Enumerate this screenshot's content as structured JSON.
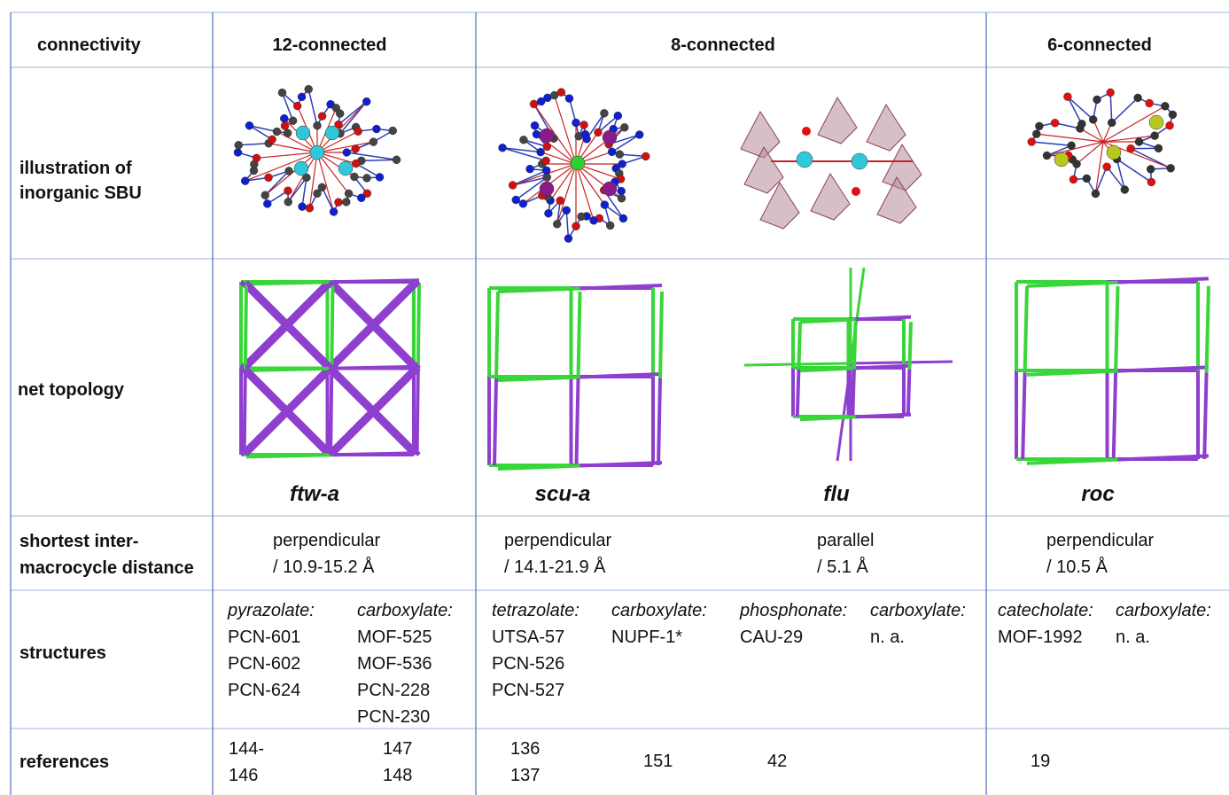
{
  "table": {
    "header": [
      "connectivity",
      "12-connected",
      "8-connected",
      "6-connected"
    ],
    "illustration_label": [
      "illustration of",
      "inorganic SBU"
    ],
    "topology_label": "net topology",
    "topologies": [
      "ftw-a",
      "scu-a",
      "flu",
      "roc"
    ],
    "distance_label": [
      "shortest inter-",
      "macrocycle distance"
    ],
    "distances": [
      {
        "orientation": "perpendicular",
        "distance": "/ 10.9-15.2 Å"
      },
      {
        "orientation": "perpendicular",
        "distance": "/ 14.1-21.9 Å"
      },
      {
        "orientation": "parallel",
        "distance": "/ 5.1 Å"
      },
      {
        "orientation": "perpendicular",
        "distance": "/ 10.5 Å"
      }
    ],
    "structures_label": "structures",
    "structures": [
      {
        "linker": "pyrazolate:",
        "items": [
          "PCN-601",
          "PCN-602",
          "PCN-624"
        ]
      },
      {
        "linker": "carboxylate:",
        "items": [
          "MOF-525",
          "MOF-536",
          "PCN-228",
          "PCN-230"
        ]
      },
      {
        "linker": "tetrazolate:",
        "items": [
          "UTSA-57",
          "PCN-526",
          "PCN-527"
        ]
      },
      {
        "linker": "carboxylate:",
        "items": [
          "NUPF-1*"
        ]
      },
      {
        "linker": "phosphonate:",
        "items": [
          "CAU-29"
        ]
      },
      {
        "linker": "carboxylate:",
        "items": [
          "n. a."
        ]
      },
      {
        "linker": "catecholate:",
        "items": [
          "MOF-1992"
        ]
      },
      {
        "linker": "carboxylate:",
        "items": [
          "n. a."
        ]
      }
    ],
    "references_label": "references",
    "references": [
      [
        "144-",
        "146"
      ],
      [
        "147",
        "148"
      ],
      [
        "136",
        "137"
      ],
      [
        "151"
      ],
      [
        "42"
      ],
      [],
      [
        "19"
      ],
      []
    ]
  }
}
